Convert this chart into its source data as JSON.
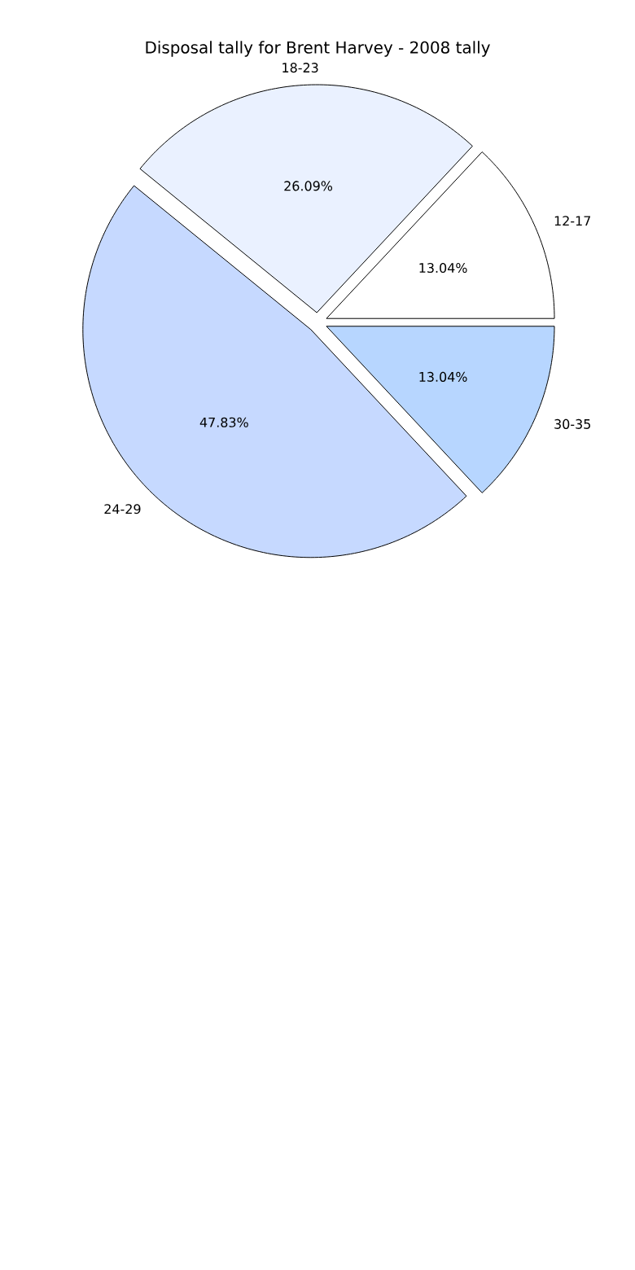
{
  "chart_data": {
    "type": "pie",
    "title": "Disposal tally for Brent Harvey - 2008 tally",
    "categories": [
      "12-17",
      "18-23",
      "24-29",
      "30-35"
    ],
    "values": [
      13.04,
      26.09,
      47.83,
      13.04
    ],
    "colors": [
      "#ffffff",
      "#eaf1ff",
      "#c6d9ff",
      "#b7d6ff"
    ],
    "value_labels": [
      "13.04%",
      "26.09%",
      "47.83%",
      "13.04%"
    ]
  }
}
